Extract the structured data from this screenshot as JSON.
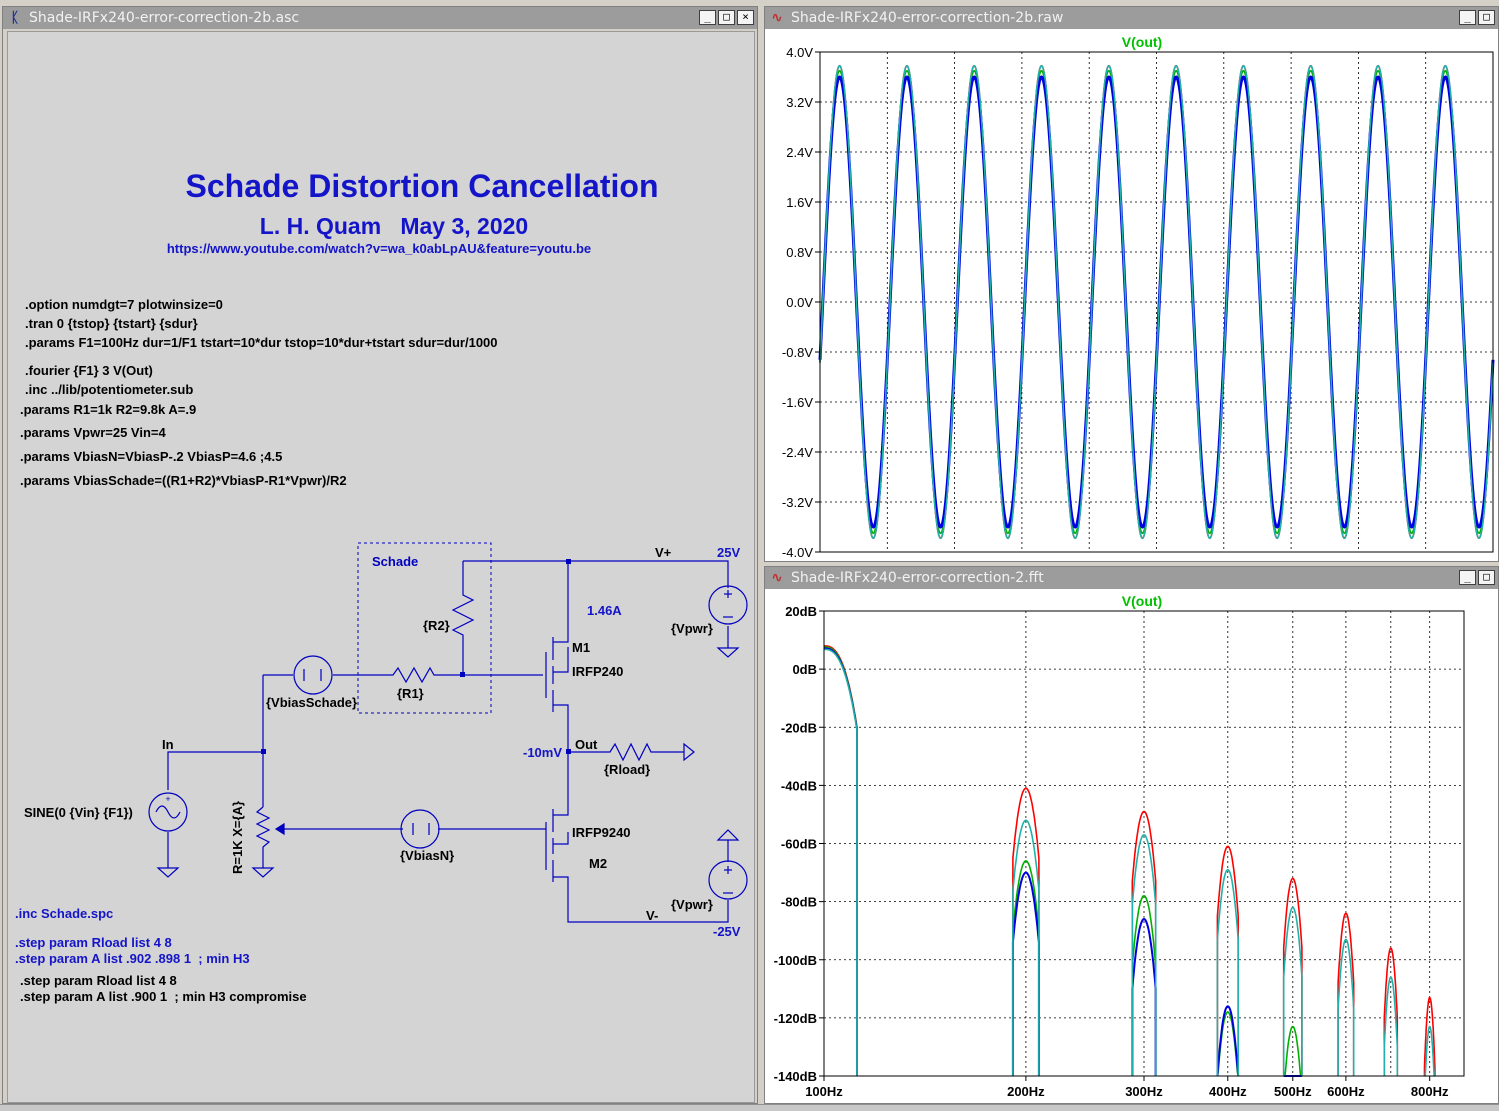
{
  "schematic": {
    "window_title": "Shade-IRFx240-error-correction-2b.asc",
    "title": "Schade Distortion Cancellation",
    "author_line": "L. H. Quam   May 3, 2020",
    "url": "https://www.youtube.com/watch?v=wa_k0abLpAU&feature=youtu.be",
    "directives": [
      ".option numdgt=7 plotwinsize=0",
      ".tran 0 {tstop} {tstart} {sdur}",
      ".params F1=100Hz dur=1/F1 tstart=10*dur tstop=10*dur+tstart sdur=dur/1000",
      ".fourier {F1} 3 V(Out)",
      ".inc ../lib/potentiometer.sub",
      ".params R1=1k R2=9.8k A=.9",
      ".params Vpwr=25 Vin=4",
      ".params VbiasN=VbiasP-.2 VbiasP=4.6 ;4.5",
      ".params VbiasSchade=((R1+R2)*VbiasP-R1*Vpwr)/R2"
    ],
    "bottom_blue": [
      ".inc Schade.spc",
      ".step param Rload list 4 8",
      ".step param A list .902 .898 1  ; min H3"
    ],
    "bottom_black": [
      ".step param Rload list 4 8",
      ".step param A list .900 1  ; min H3 compromise"
    ],
    "labels": {
      "schade_box": "Schade",
      "vplus": "V+",
      "v25": "25V",
      "current": "1.46A",
      "r2": "{R2}",
      "m1": "M1",
      "irfp240": "IRFP240",
      "vpwr_top": "{Vpwr}",
      "r1": "{R1}",
      "vbias_schade": "{VbiasSchade}",
      "in": "In",
      "out": "Out",
      "out_v": "-10mV",
      "rload": "{Rload}",
      "sine": "SINE(0 {Vin} {F1})",
      "pot": "R=1K X={A}",
      "vbiasn": "{VbiasN}",
      "irfp9240": "IRFP9240",
      "m2": "M2",
      "vpwr_bot": "{Vpwr}",
      "vminus": "V-",
      "vm25": "-25V"
    },
    "colors": {
      "wire": "#0000c0",
      "title": "#1414c8",
      "bg": "#d4d4d4",
      "text": "#000000"
    }
  },
  "wave": {
    "window_title": "Shade-IRFx240-error-correction-2b.raw",
    "trace_label": "V(out)",
    "y_ticks": [
      "4.0V",
      "3.2V",
      "2.4V",
      "1.6V",
      "0.8V",
      "0.0V",
      "-0.8V",
      "-1.6V",
      "-2.4V",
      "-3.2V",
      "-4.0V"
    ],
    "chart_data": {
      "type": "line",
      "title": "V(out)",
      "ylim": [
        -4.0,
        4.0
      ],
      "cycles": 10,
      "series": [
        {
          "color": "#ff0000",
          "amplitude": 3.78
        },
        {
          "color": "#00b000",
          "amplitude": 3.7
        },
        {
          "color": "#0000e0",
          "amplitude": 3.6
        },
        {
          "color": "#20b2aa",
          "amplitude": 3.78
        }
      ],
      "grid": true
    }
  },
  "fft": {
    "window_title": "Shade-IRFx240-error-correction-2.fft",
    "trace_label": "V(out)",
    "y_ticks": [
      "20dB",
      "0dB",
      "-20dB",
      "-40dB",
      "-60dB",
      "-80dB",
      "-100dB",
      "-120dB",
      "-140dB"
    ],
    "x_ticks": [
      "100Hz",
      "200Hz",
      "300Hz",
      "400Hz",
      "500Hz",
      "600Hz",
      "800Hz"
    ],
    "chart_data": {
      "type": "line",
      "title": "V(out)",
      "xscale": "log",
      "xlim": [
        100,
        900
      ],
      "ylim": [
        -140,
        20
      ],
      "harmonics_hz": [
        200,
        300,
        400,
        500,
        600,
        700,
        800
      ],
      "series": [
        {
          "color": "#ff0000",
          "peaks_db": [
            -41,
            -49,
            -61,
            -72,
            -84,
            -96,
            -113
          ]
        },
        {
          "color": "#00b000",
          "peaks_db": [
            -66,
            -78,
            -118,
            -123,
            -200,
            -200,
            -200
          ]
        },
        {
          "color": "#0000e0",
          "peaks_db": [
            -70,
            -86,
            -116,
            -140,
            -200,
            -200,
            -200
          ]
        },
        {
          "color": "#20b2aa",
          "peaks_db": [
            -52,
            -57,
            -69,
            -82,
            -93,
            -106,
            -123
          ]
        }
      ],
      "fundamental_db": 8,
      "grid": true
    }
  }
}
